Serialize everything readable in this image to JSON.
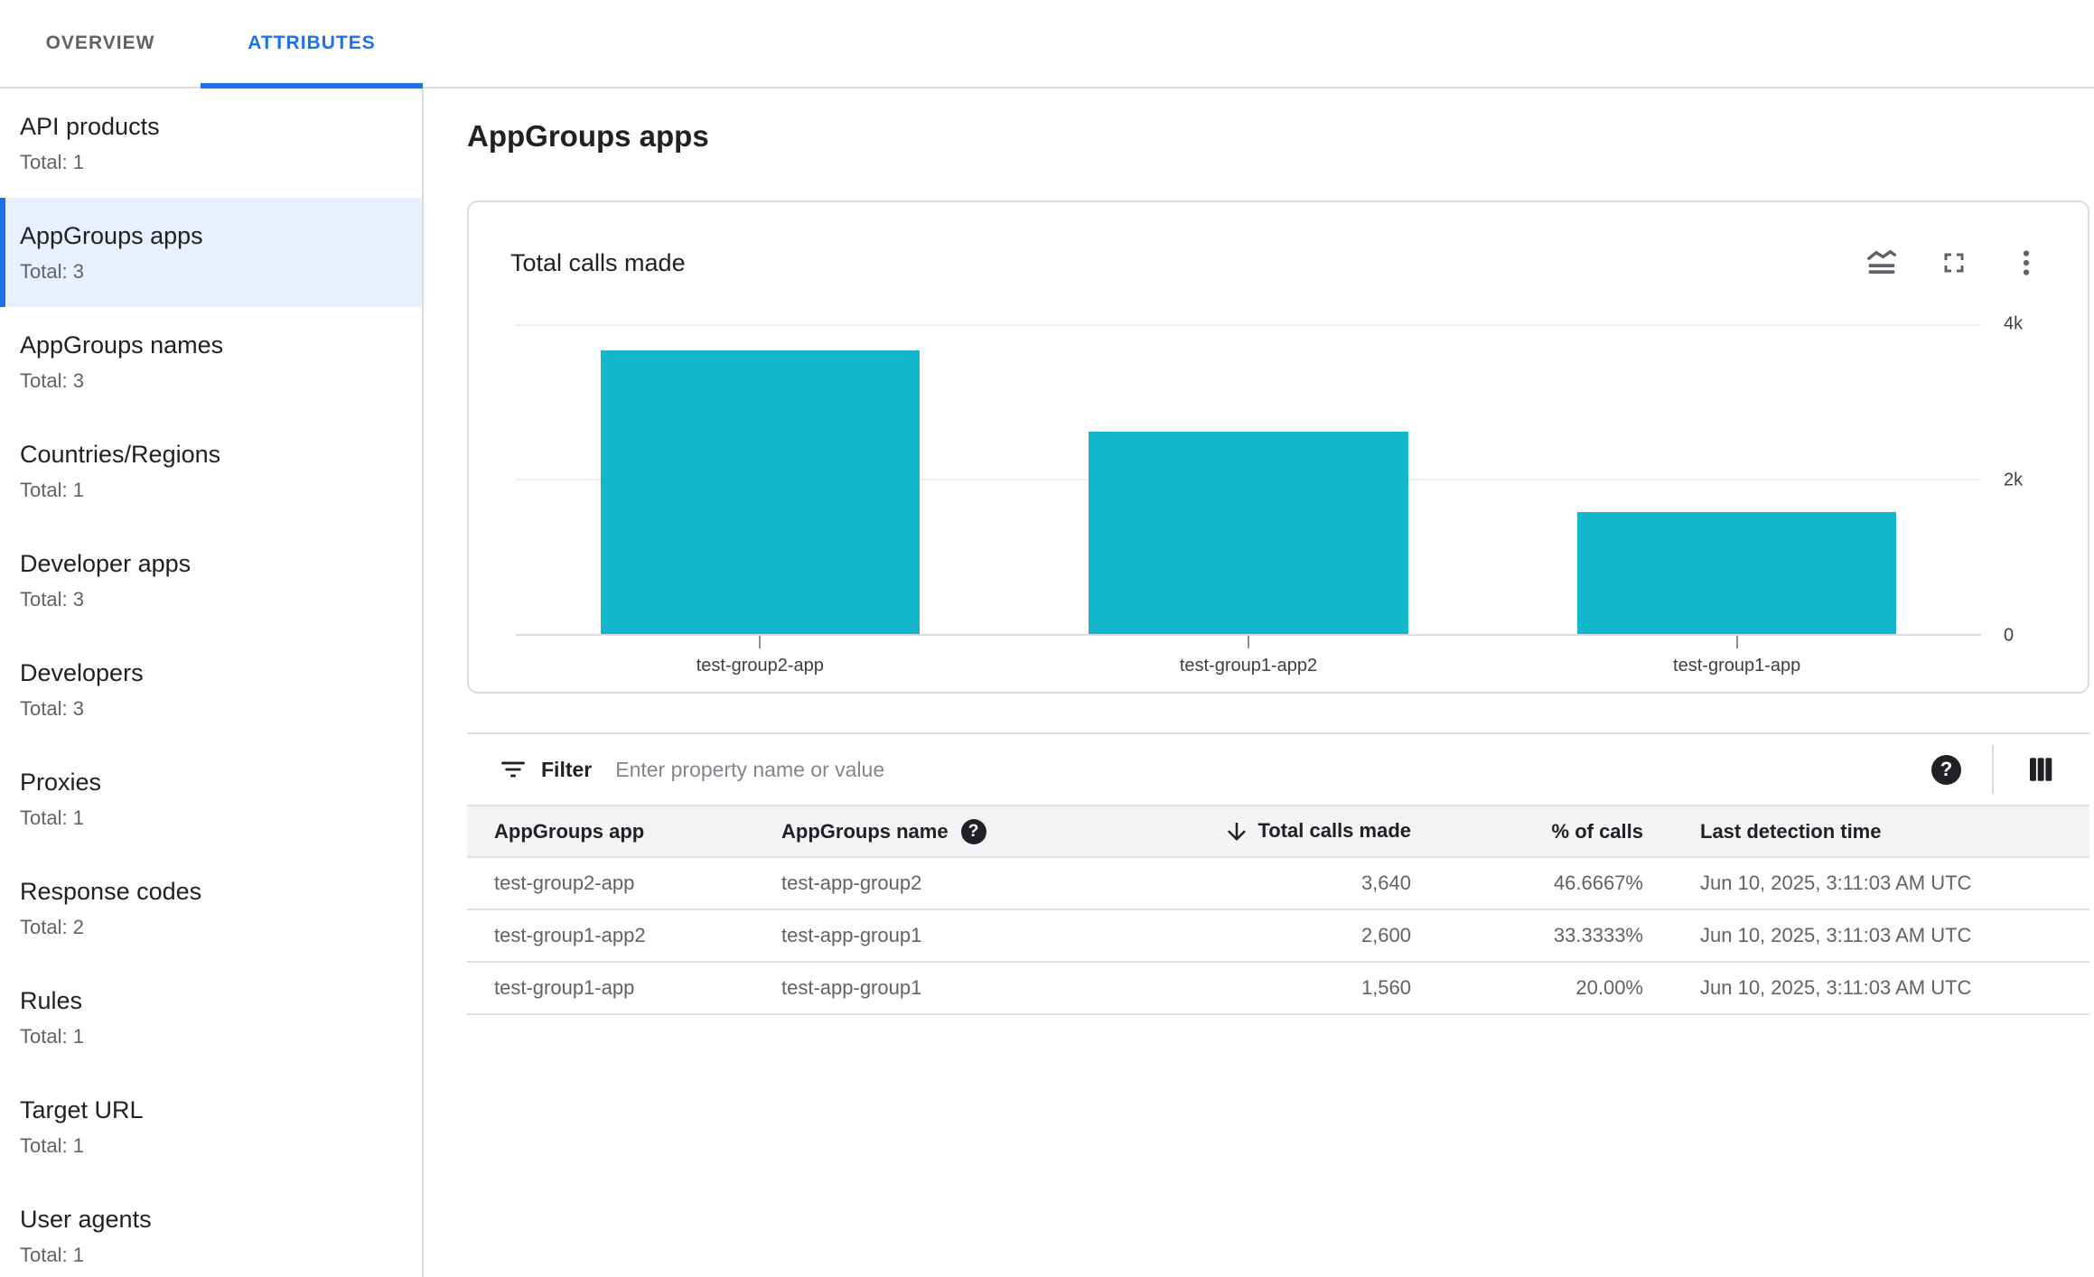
{
  "tabs": [
    {
      "label": "OVERVIEW"
    },
    {
      "label": "ATTRIBUTES"
    }
  ],
  "sidebar": {
    "items": [
      {
        "label": "API products",
        "total": "Total: 1",
        "selected": false
      },
      {
        "label": "AppGroups apps",
        "total": "Total: 3",
        "selected": true
      },
      {
        "label": "AppGroups names",
        "total": "Total: 3",
        "selected": false
      },
      {
        "label": "Countries/Regions",
        "total": "Total: 1",
        "selected": false
      },
      {
        "label": "Developer apps",
        "total": "Total: 3",
        "selected": false
      },
      {
        "label": "Developers",
        "total": "Total: 3",
        "selected": false
      },
      {
        "label": "Proxies",
        "total": "Total: 1",
        "selected": false
      },
      {
        "label": "Response codes",
        "total": "Total: 2",
        "selected": false
      },
      {
        "label": "Rules",
        "total": "Total: 1",
        "selected": false
      },
      {
        "label": "Target URL",
        "total": "Total: 1",
        "selected": false
      },
      {
        "label": "User agents",
        "total": "Total: 1",
        "selected": false
      }
    ]
  },
  "page": {
    "title": "AppGroups apps"
  },
  "chart_card": {
    "title": "Total calls made"
  },
  "chart_data": {
    "type": "bar",
    "title": "Total calls made",
    "categories": [
      "test-group2-app",
      "test-group1-app2",
      "test-group1-app"
    ],
    "values": [
      3640,
      2600,
      1560
    ],
    "xlabel": "",
    "ylabel": "",
    "ylim": [
      0,
      4000
    ],
    "yticks": [
      {
        "label": "4k",
        "value": 4000
      },
      {
        "label": "2k",
        "value": 2000
      },
      {
        "label": "0",
        "value": 0
      }
    ],
    "bar_color": "#14b6cc",
    "grid": "horizontal",
    "legend": "none"
  },
  "filter": {
    "label": "Filter",
    "placeholder": "Enter property name or value"
  },
  "table": {
    "columns": [
      {
        "label": "AppGroups app",
        "align": "left"
      },
      {
        "label": "AppGroups name",
        "align": "left",
        "help": true
      },
      {
        "label": "Total calls made",
        "align": "right",
        "sort": "desc"
      },
      {
        "label": "% of calls",
        "align": "right"
      },
      {
        "label": "Last detection time",
        "align": "left"
      }
    ],
    "rows": [
      [
        "test-group2-app",
        "test-app-group2",
        "3,640",
        "46.6667%",
        "Jun 10, 2025, 3:11:03 AM UTC"
      ],
      [
        "test-group1-app2",
        "test-app-group1",
        "2,600",
        "33.3333%",
        "Jun 10, 2025, 3:11:03 AM UTC"
      ],
      [
        "test-group1-app",
        "test-app-group1",
        "1,560",
        "20.00%",
        "Jun 10, 2025, 3:11:03 AM UTC"
      ]
    ]
  },
  "icons": {
    "help": "?"
  },
  "colors": {
    "accent": "#1a73e8",
    "selected_bg": "#e8f0fe",
    "bar": "#14b6cc",
    "border": "#dadce0",
    "text_primary": "#202124",
    "text_secondary": "#5f6368"
  }
}
